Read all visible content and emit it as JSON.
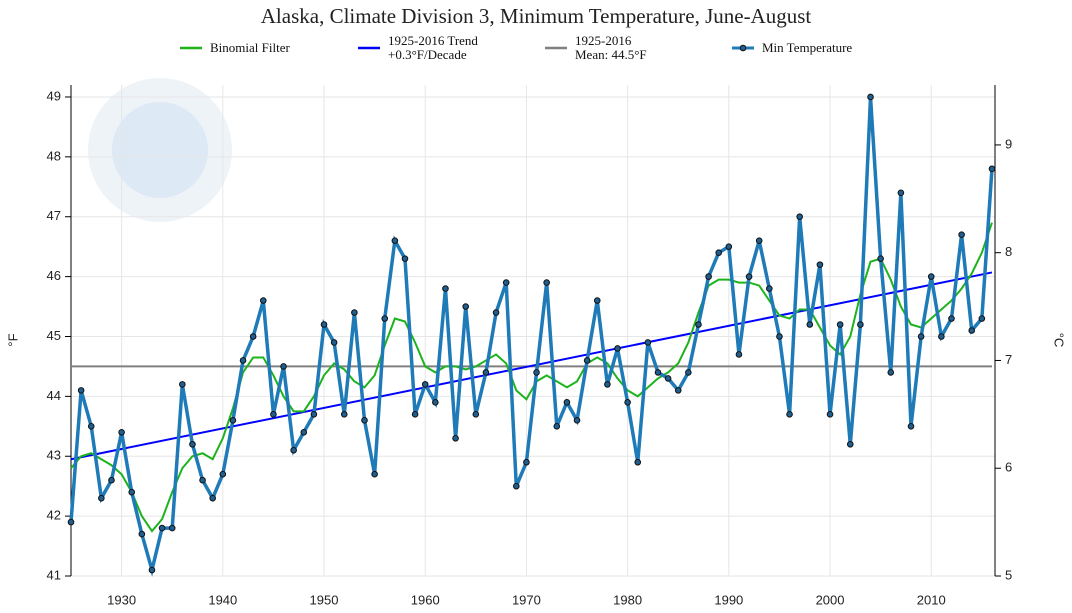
{
  "chart_data": {
    "type": "line",
    "title": "Alaska, Climate Division 3, Minimum Temperature, June-August",
    "y_label": "°F",
    "y2_label": "°C",
    "x": [
      1925,
      1926,
      1927,
      1928,
      1929,
      1930,
      1931,
      1932,
      1933,
      1934,
      1935,
      1936,
      1937,
      1938,
      1939,
      1940,
      1941,
      1942,
      1943,
      1944,
      1945,
      1946,
      1947,
      1948,
      1949,
      1950,
      1951,
      1952,
      1953,
      1954,
      1955,
      1956,
      1957,
      1958,
      1959,
      1960,
      1961,
      1962,
      1963,
      1964,
      1965,
      1966,
      1967,
      1968,
      1969,
      1970,
      1971,
      1972,
      1973,
      1974,
      1975,
      1976,
      1977,
      1978,
      1979,
      1980,
      1981,
      1982,
      1983,
      1984,
      1985,
      1986,
      1987,
      1988,
      1989,
      1990,
      1991,
      1992,
      1993,
      1994,
      1995,
      1996,
      1997,
      1998,
      1999,
      2000,
      2001,
      2002,
      2003,
      2004,
      2005,
      2006,
      2007,
      2008,
      2009,
      2010,
      2011,
      2012,
      2013,
      2014,
      2015,
      2016
    ],
    "series": [
      {
        "name": "Binomial Filter",
        "color": "#1db31d",
        "values": [
          42.8,
          43.0,
          43.05,
          42.95,
          42.85,
          42.7,
          42.4,
          42.0,
          41.75,
          41.95,
          42.4,
          42.8,
          43.0,
          43.05,
          42.95,
          43.3,
          43.8,
          44.4,
          44.65,
          44.65,
          44.35,
          44.0,
          43.75,
          43.75,
          44.0,
          44.35,
          44.55,
          44.45,
          44.25,
          44.15,
          44.35,
          44.85,
          45.3,
          45.25,
          44.9,
          44.5,
          44.4,
          44.5,
          44.5,
          44.45,
          44.5,
          44.6,
          44.7,
          44.55,
          44.1,
          43.95,
          44.25,
          44.35,
          44.25,
          44.15,
          44.25,
          44.55,
          44.65,
          44.55,
          44.3,
          44.1,
          44.0,
          44.15,
          44.3,
          44.4,
          44.55,
          44.9,
          45.4,
          45.85,
          45.95,
          45.95,
          45.9,
          45.9,
          45.85,
          45.6,
          45.35,
          45.3,
          45.45,
          45.45,
          45.15,
          44.85,
          44.7,
          45.0,
          45.7,
          46.25,
          46.3,
          45.95,
          45.5,
          45.2,
          45.15,
          45.3,
          45.45,
          45.6,
          45.8,
          46.05,
          46.4,
          46.9
        ]
      },
      {
        "name": "1925-2016 Trend\n+0.3°F/Decade",
        "color": "#0000ff",
        "x": [
          1925,
          2016
        ],
        "values": [
          42.95,
          46.07
        ]
      },
      {
        "name": "1925-2016\nMean: 44.5°F",
        "color": "#808080",
        "x": [
          1925,
          2016
        ],
        "values": [
          44.5,
          44.5
        ]
      },
      {
        "name": "Min Temperature",
        "color": "#1f7ab8",
        "markers": true,
        "values": [
          41.9,
          44.1,
          43.5,
          42.3,
          42.6,
          43.4,
          42.4,
          41.7,
          41.1,
          41.8,
          41.8,
          44.2,
          43.2,
          42.6,
          42.3,
          42.7,
          43.6,
          44.6,
          45.0,
          45.6,
          43.7,
          44.5,
          43.1,
          43.4,
          43.7,
          45.2,
          44.9,
          43.7,
          45.4,
          43.6,
          42.7,
          45.3,
          46.6,
          46.3,
          43.7,
          44.2,
          43.9,
          45.8,
          43.3,
          45.5,
          43.7,
          44.4,
          45.4,
          45.9,
          42.5,
          42.9,
          44.4,
          45.9,
          43.5,
          43.9,
          43.6,
          44.6,
          45.6,
          44.2,
          44.8,
          43.9,
          42.9,
          44.9,
          44.4,
          44.3,
          44.1,
          44.4,
          45.2,
          46.0,
          46.4,
          46.5,
          44.7,
          46.0,
          46.6,
          45.8,
          45.0,
          43.7,
          47.0,
          45.2,
          46.2,
          43.7,
          45.2,
          43.2,
          45.2,
          49.0,
          46.3,
          44.4,
          47.4,
          43.5,
          45.0,
          46.0,
          45.0,
          45.3,
          46.7,
          45.1,
          45.3,
          47.8
        ]
      }
    ],
    "xlim": [
      1925,
      2016.3
    ],
    "xticks": [
      1930,
      1940,
      1950,
      1960,
      1970,
      1980,
      1990,
      2000,
      2010
    ],
    "ylim": [
      41,
      49.2
    ],
    "yticks": [
      41,
      42,
      43,
      44,
      45,
      46,
      47,
      48,
      49
    ],
    "y2lim": [
      5,
      9.556
    ],
    "y2ticks": [
      5,
      6,
      7,
      8,
      9
    ],
    "grid": true
  }
}
